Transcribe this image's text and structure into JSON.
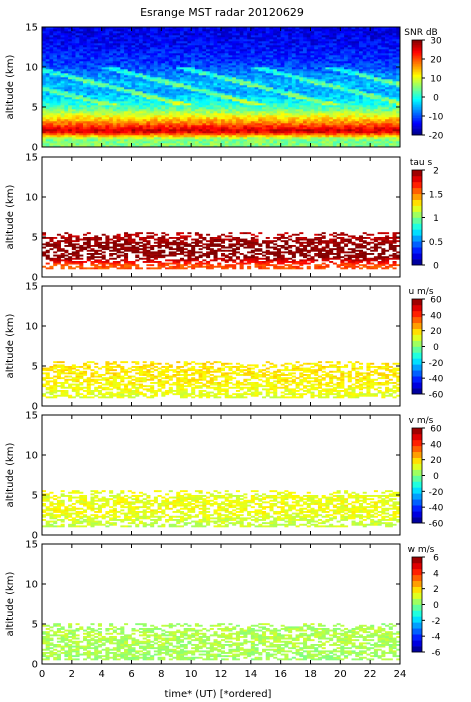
{
  "title": "Esrange MST radar 20120629",
  "xlabel": "time* (UT)   [*ordered]",
  "x_ticks": [
    "0",
    "2",
    "4",
    "6",
    "8",
    "10",
    "12",
    "14",
    "16",
    "18",
    "20",
    "22",
    "24"
  ],
  "y_ticks": [
    "0",
    "5",
    "10",
    "15"
  ],
  "chart_data": [
    {
      "type": "heatmap",
      "quantity": "SNR",
      "ylabel": "altitude (km)",
      "colorbar_label": "SNR dB",
      "xlim": [
        0,
        24
      ],
      "ylim": [
        0,
        15
      ],
      "clim": [
        -20,
        30
      ],
      "colorbar_ticks": [
        "30",
        "20",
        "10",
        "0",
        "-10",
        "-20"
      ],
      "colormap": "jet",
      "coverage_altitude_km": [
        0,
        15
      ],
      "profile": [
        {
          "altitude_km": 1,
          "value": 5
        },
        {
          "altitude_km": 2,
          "value": 27
        },
        {
          "altitude_km": 3,
          "value": 18
        },
        {
          "altitude_km": 4,
          "value": 10
        },
        {
          "altitude_km": 5,
          "value": 2
        },
        {
          "altitude_km": 7,
          "value": -6
        },
        {
          "altitude_km": 8,
          "value": -4
        },
        {
          "altitude_km": 10,
          "value": -10
        },
        {
          "altitude_km": 13,
          "value": -14
        },
        {
          "altitude_km": 15,
          "value": -15
        }
      ]
    },
    {
      "type": "heatmap",
      "quantity": "tau",
      "ylabel": "altitude (km)",
      "colorbar_label": "tau s",
      "xlim": [
        0,
        24
      ],
      "ylim": [
        0,
        15
      ],
      "clim": [
        0,
        2
      ],
      "colorbar_ticks": [
        "2",
        "1.5",
        "1",
        "0.5",
        "0"
      ],
      "colormap": "jet",
      "coverage_altitude_km": [
        1,
        5.5
      ],
      "profile": [
        {
          "altitude_km": 1.5,
          "value": 1.6
        },
        {
          "altitude_km": 2.5,
          "value": 2.0
        },
        {
          "altitude_km": 4,
          "value": 2.0
        },
        {
          "altitude_km": 5,
          "value": 1.9
        }
      ]
    },
    {
      "type": "heatmap",
      "quantity": "u",
      "ylabel": "altitude (km)",
      "colorbar_label": "u m/s",
      "xlim": [
        0,
        24
      ],
      "ylim": [
        0,
        15
      ],
      "clim": [
        -60,
        60
      ],
      "colorbar_ticks": [
        "60",
        "40",
        "20",
        "0",
        "-20",
        "-40",
        "-60"
      ],
      "colormap": "jet",
      "coverage_altitude_km": [
        1,
        5.5
      ],
      "profile": [
        {
          "altitude_km": 1.5,
          "value": 12
        },
        {
          "altitude_km": 3,
          "value": 16
        },
        {
          "altitude_km": 5,
          "value": 18
        }
      ]
    },
    {
      "type": "heatmap",
      "quantity": "v",
      "ylabel": "altitude (km)",
      "colorbar_label": "v m/s",
      "xlim": [
        0,
        24
      ],
      "ylim": [
        0,
        15
      ],
      "clim": [
        -60,
        60
      ],
      "colorbar_ticks": [
        "60",
        "40",
        "20",
        "0",
        "-20",
        "-40",
        "-60"
      ],
      "colormap": "jet",
      "coverage_altitude_km": [
        1,
        5.5
      ],
      "profile": [
        {
          "altitude_km": 1.5,
          "value": 8
        },
        {
          "altitude_km": 3,
          "value": 14
        },
        {
          "altitude_km": 5,
          "value": 12
        }
      ]
    },
    {
      "type": "heatmap",
      "quantity": "w",
      "ylabel": "altitude (km)",
      "colorbar_label": "w m/s",
      "xlim": [
        0,
        24
      ],
      "ylim": [
        0,
        15
      ],
      "clim": [
        -6,
        6
      ],
      "colorbar_ticks": [
        "6",
        "4",
        "2",
        "0",
        "-2",
        "-4",
        "-6"
      ],
      "colormap": "jet",
      "coverage_altitude_km": [
        0.5,
        5
      ],
      "profile": [
        {
          "altitude_km": 1,
          "value": 0.4
        },
        {
          "altitude_km": 3,
          "value": 0.6
        },
        {
          "altitude_km": 5,
          "value": 0.5
        }
      ]
    }
  ]
}
